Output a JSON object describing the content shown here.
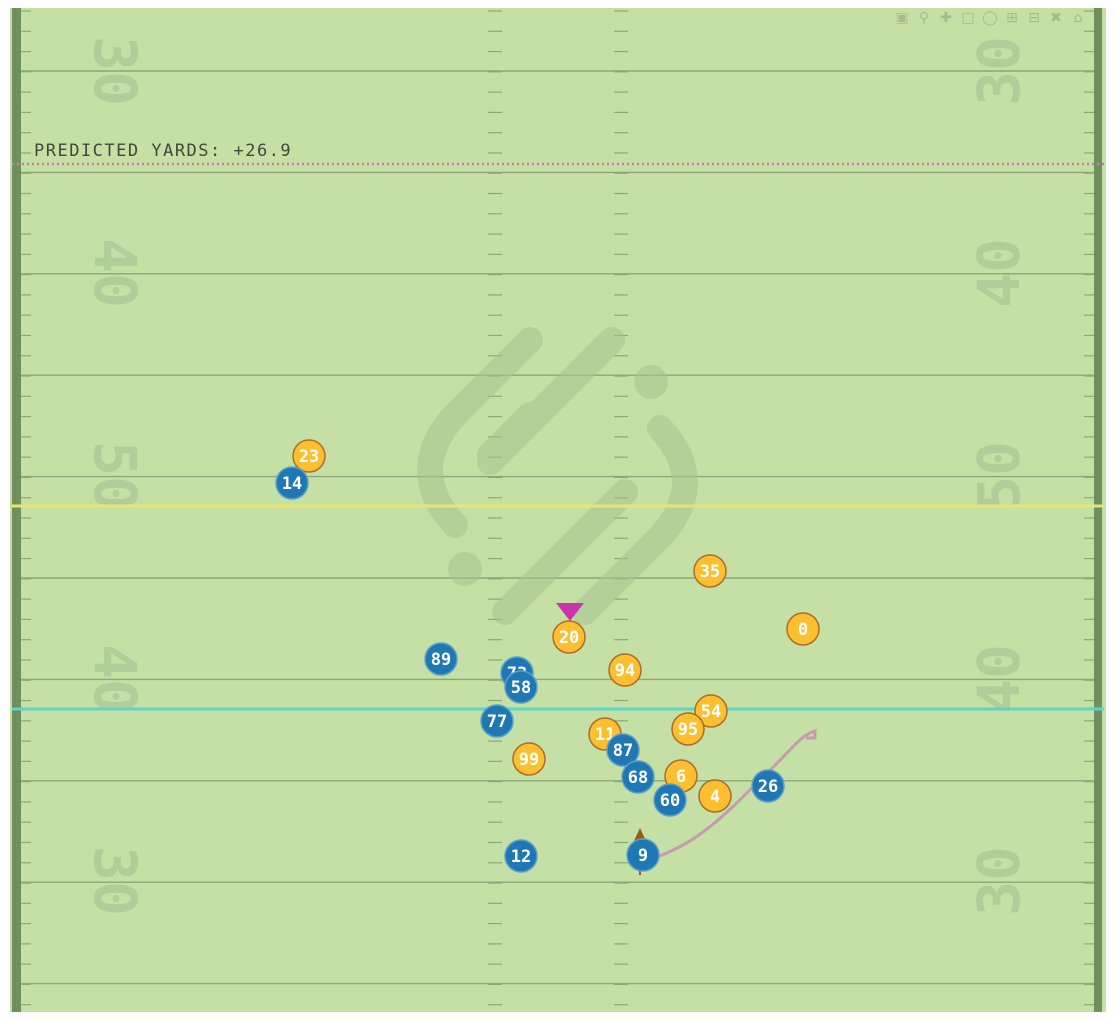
{
  "colors": {
    "field": "#c5e0a5",
    "sideline": "#6f8f5f",
    "yard_line": "#8aa77a",
    "team_a": "#1f78b4",
    "team_b": "#fbbf2f",
    "first_down_line": "#e6e66e",
    "scrimmage_line": "#5cd6c4",
    "predicted_line": "#c87aa8",
    "trajectory": "#c79ab0",
    "target_marker": "#cc33aa",
    "direction_marker": "#9a5a1a"
  },
  "predicted_label": "PREDICTED YARDS: +26.9",
  "yard_numbers": [
    "30",
    "40",
    "50",
    "40",
    "30"
  ],
  "players": {
    "team_a": [
      "14",
      "89",
      "73",
      "58",
      "77",
      "87",
      "68",
      "60",
      "26",
      "12",
      "9"
    ],
    "team_b": [
      "23",
      "35",
      "0",
      "20",
      "94",
      "54",
      "95",
      "11",
      "99",
      "6",
      "4"
    ]
  },
  "icons": [
    "camera-icon",
    "zoom-icon",
    "pan-icon",
    "box-select-icon",
    "lasso-icon",
    "zoom-in-icon",
    "zoom-out-icon",
    "autoscale-icon",
    "reset-axes-icon"
  ]
}
